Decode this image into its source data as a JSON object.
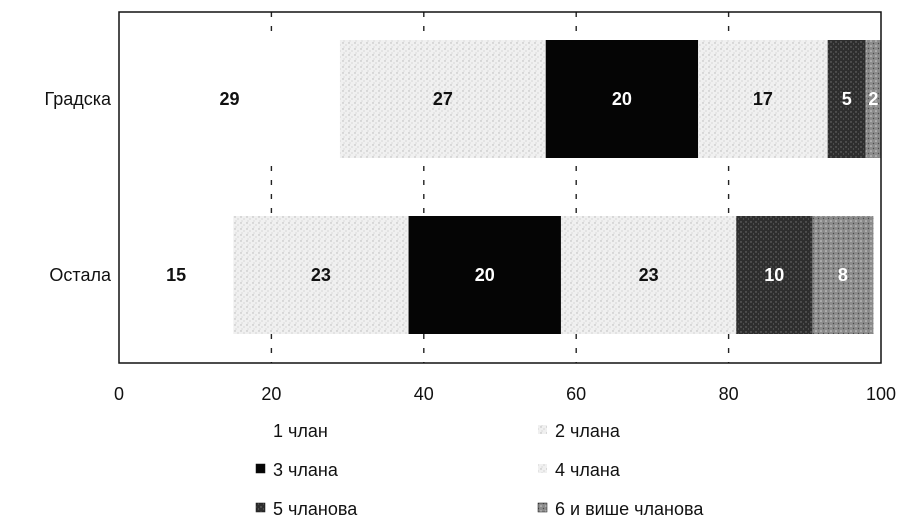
{
  "chart_data": {
    "type": "bar",
    "orientation": "horizontal",
    "stacked": true,
    "categories": [
      "Градска",
      "Остала"
    ],
    "series": [
      {
        "name": "1 члан",
        "values": [
          29,
          15
        ],
        "color": "#ffffff",
        "label_color": "#111111"
      },
      {
        "name": "2 члана",
        "values": [
          27,
          23
        ],
        "color": "#ececec",
        "label_color": "#111111"
      },
      {
        "name": "3 члана",
        "values": [
          20,
          20
        ],
        "color": "#050505",
        "label_color": "#ffffff"
      },
      {
        "name": "4 члана",
        "values": [
          17,
          23
        ],
        "color": "#f2f2f2",
        "label_color": "#111111"
      },
      {
        "name": "5 чланова",
        "values": [
          5,
          10
        ],
        "color": "#3a3a3a",
        "label_color": "#ffffff"
      },
      {
        "name": "6 и више чланова",
        "values": [
          2,
          8
        ],
        "color": "#9a9a9a",
        "label_color": "#ffffff"
      }
    ],
    "xlim": [
      0,
      100
    ],
    "xticks": [
      "0",
      "20",
      "40",
      "60",
      "80",
      "100"
    ],
    "grid": "vertical dashed",
    "legend_position": "bottom"
  }
}
